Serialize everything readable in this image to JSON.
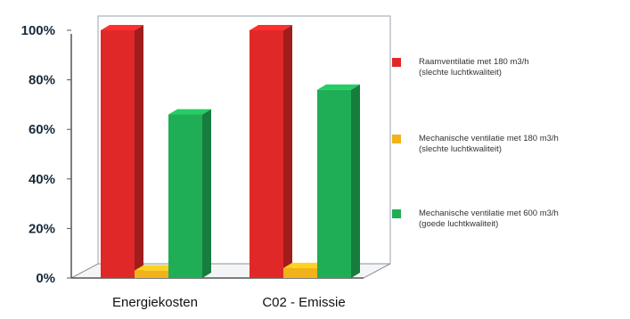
{
  "chart_data": {
    "type": "bar",
    "categories": [
      "Energiekosten",
      "C02 - Emissie"
    ],
    "series": [
      {
        "name": "Raamventilatie met 180 m3/h (slechte luchtkwaliteit)",
        "legend_lines": [
          "Raamventilatie met 180 m3/h",
          "(slechte luchtkwaliteit)"
        ],
        "color": "#e02828",
        "values": [
          100,
          100
        ]
      },
      {
        "name": "Mechanische ventilatie met 180 m3/h (slechte luchtkwaliteit)",
        "legend_lines": [
          "Mechanische ventilatie met 180 m3/h",
          "(slechte luchtkwaliteit)"
        ],
        "color": "#f2b21a",
        "values": [
          3,
          4
        ]
      },
      {
        "name": "Mechanische ventilatie met 600 m3/h (goede luchtkwaliteit)",
        "legend_lines": [
          "Mechanische ventilatie met 600 m3/h",
          "(goede luchtkwaliteit)"
        ],
        "color": "#1fae55",
        "values": [
          66,
          76
        ]
      }
    ],
    "yticks": [
      "0%",
      "20%",
      "40%",
      "60%",
      "80%",
      "100%"
    ],
    "ylim": [
      0,
      100
    ],
    "grid": false,
    "legend_position": "right",
    "style": "3d"
  }
}
